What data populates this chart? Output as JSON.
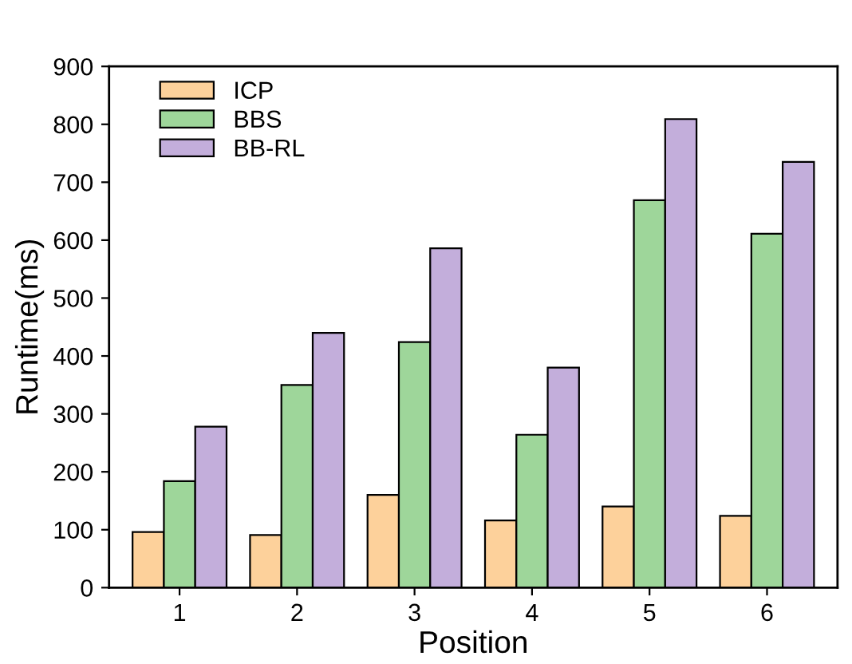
{
  "chart_data": {
    "type": "bar",
    "xlabel": "Position",
    "ylabel": "Runtime(ms)",
    "categories": [
      "1",
      "2",
      "3",
      "4",
      "5",
      "6"
    ],
    "series": [
      {
        "name": "ICP",
        "color": "#fdd19b",
        "values": [
          96,
          91,
          160,
          116,
          140,
          124
        ]
      },
      {
        "name": "BBS",
        "color": "#9ed69a",
        "values": [
          184,
          350,
          424,
          264,
          669,
          611
        ]
      },
      {
        "name": "BB-RL",
        "color": "#c3aedb",
        "values": [
          278,
          440,
          586,
          380,
          809,
          735
        ]
      }
    ],
    "ylim": [
      0,
      900
    ],
    "yticks": [
      0,
      100,
      200,
      300,
      400,
      500,
      600,
      700,
      800,
      900
    ],
    "grid": false,
    "legend": "top left"
  }
}
